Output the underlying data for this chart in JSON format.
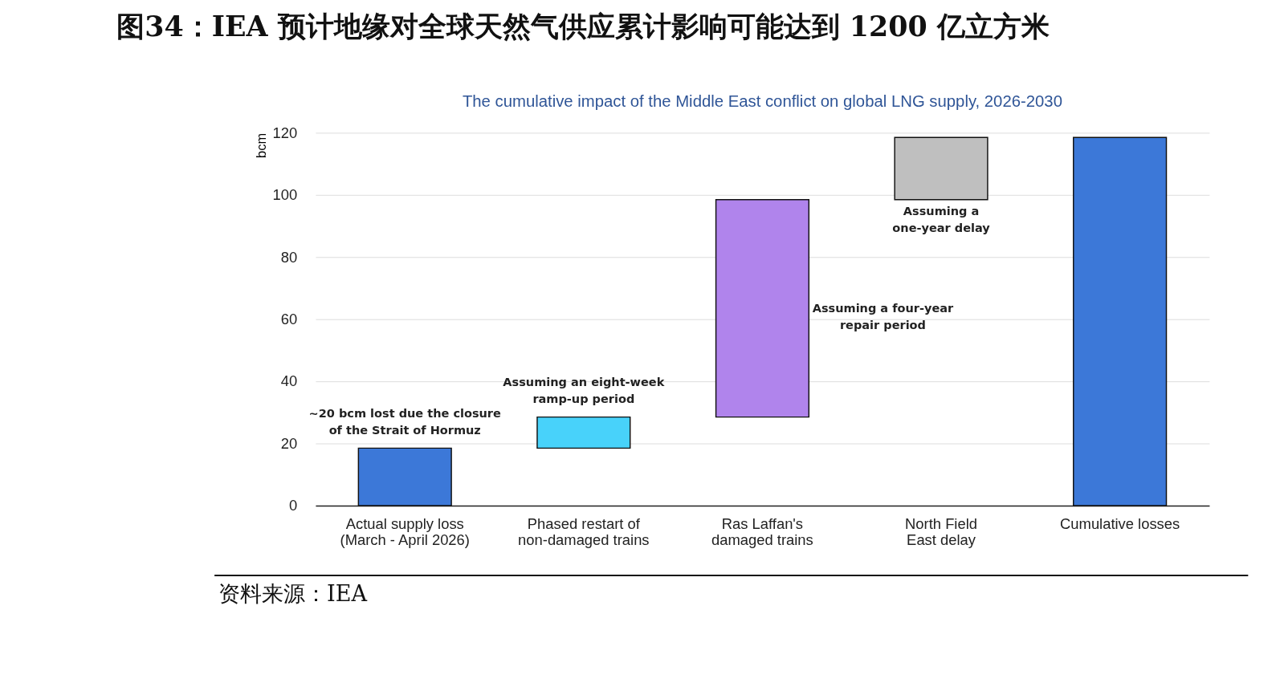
{
  "chart_data": {
    "type": "bar",
    "title": "图34：IEA 预计地缘对全球天然气供应累计影响可能达到 1200 亿立方米",
    "subtitle": "The cumulative impact of the Middle East conflict on global LNG supply, 2026-2030",
    "ylabel": "bcm",
    "categories": [
      "Actual supply loss (March - April 2026)",
      "Phased restart of non-damaged trains",
      "Ras Laffan's damaged trains",
      "North Field East delay",
      "Cumulative losses"
    ],
    "values": [
      18.5,
      10,
      70,
      20,
      118.5
    ],
    "base": [
      0,
      18.5,
      28.5,
      98.5,
      0
    ],
    "colors": [
      "#3c78d8",
      "#48d2fa",
      "#b084ec",
      "#bfbfbf",
      "#3c78d8"
    ],
    "ylim": [
      0,
      120
    ],
    "yticks": [
      0,
      20,
      40,
      60,
      80,
      100,
      120
    ],
    "grid": "y",
    "annotations": [
      {
        "text": "~20 bcm lost due the closure of the Strait of Hormuz",
        "x": "Actual supply loss (March - April 2026)",
        "y": 18.5
      },
      {
        "text": "Assuming an eight-week ramp-up period",
        "x": "Phased restart of non-damaged trains",
        "y": 28.5
      },
      "Assuming a four-year repair period",
      {
        "text": "Assuming a one-year delay",
        "x": "North Field East delay",
        "y": 98.5
      },
      "资料来源：IEA"
    ]
  }
}
